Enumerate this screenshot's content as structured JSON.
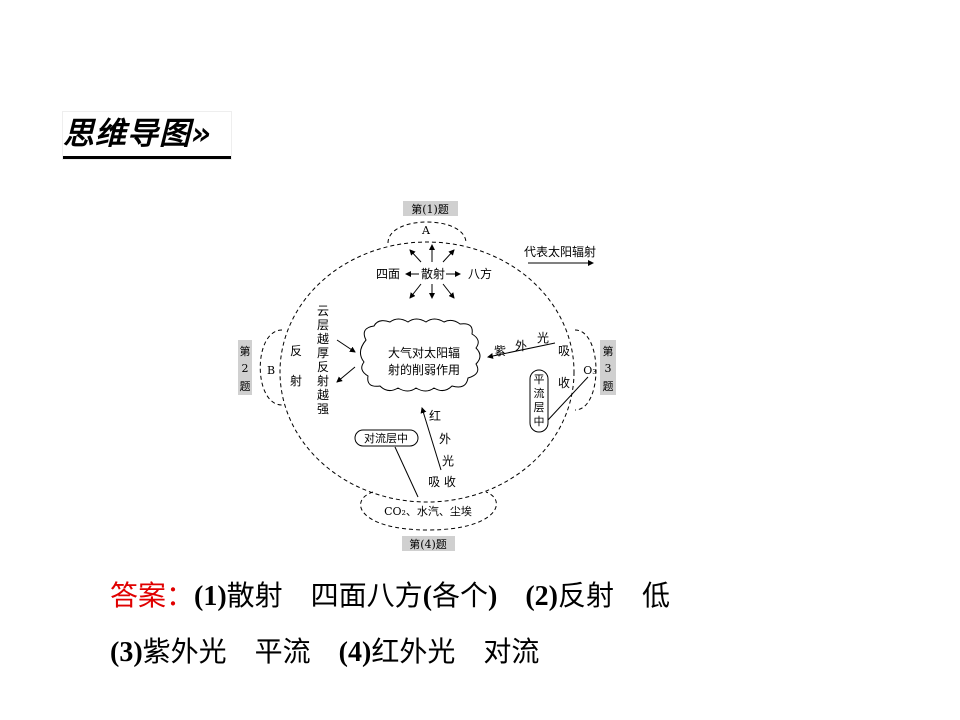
{
  "heading": "思维导图»",
  "diagram": {
    "q1": "第(1)题",
    "q2": [
      "第",
      "2",
      "题"
    ],
    "q3": [
      "第",
      "3",
      "题"
    ],
    "q4": "第(4)题",
    "a": "A",
    "b": "B",
    "legend": "代表太阳辐射",
    "left_dir": "四面",
    "scatter": "散射",
    "right_dir": "八方",
    "reflect": [
      "反",
      "射"
    ],
    "cloud_note": [
      "云",
      "层",
      "越",
      "厚",
      "反",
      "射",
      "越",
      "强"
    ],
    "center": [
      "大气对太阳辐",
      "射的削弱作用"
    ],
    "uv": [
      "紫",
      "外",
      "光"
    ],
    "absorb_r": [
      "吸",
      "收"
    ],
    "o3": "O₃",
    "strat": [
      "平",
      "流",
      "层",
      "中"
    ],
    "ir": [
      "红",
      "外",
      "光"
    ],
    "absorb_b": "吸 收",
    "tropo": "对流层中",
    "bottom": "CO₂、水汽、尘埃"
  },
  "answer": {
    "label": "答案：",
    "line1": [
      {
        "b": "(1)",
        "t": "散射　四面八方"
      },
      {
        "b": "(",
        "t": "各个"
      },
      {
        "b": ")　(2)",
        "t": "反射　低"
      }
    ],
    "line2": [
      {
        "b": "(3)",
        "t": "紫外光　平流　"
      },
      {
        "b": "(4)",
        "t": "红外光　对流"
      }
    ]
  },
  "colors": {
    "answer_label": "#e00000",
    "tag_bg": "#d0d0d0"
  }
}
